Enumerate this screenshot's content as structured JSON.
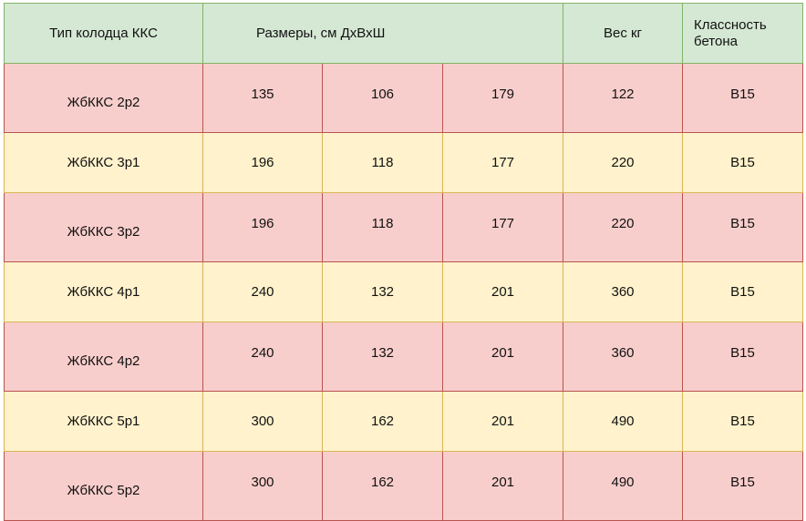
{
  "table": {
    "headers": {
      "type": "Тип колодца ККС",
      "dims": "Размеры, см ДхВхШ",
      "weight": "Вес кг",
      "class": "Классность\nбетона"
    },
    "rows": [
      {
        "name": "ЖбККС 2р2",
        "l": "135",
        "h": "106",
        "w": "179",
        "weight": "122",
        "class": "B15",
        "color": "#f8cecc"
      },
      {
        "name": "ЖбККС 3р1",
        "l": "196",
        "h": "118",
        "w": "177",
        "weight": "220",
        "class": "B15",
        "color": "#fff2cc"
      },
      {
        "name": "ЖбККС 3р2",
        "l": "196",
        "h": "118",
        "w": "177",
        "weight": "220",
        "class": "B15",
        "color": "#f8cecc"
      },
      {
        "name": "ЖбККС 4р1",
        "l": "240",
        "h": "132",
        "w": "201",
        "weight": "360",
        "class": "B15",
        "color": "#fff2cc"
      },
      {
        "name": "ЖбККС 4р2",
        "l": "240",
        "h": "132",
        "w": "201",
        "weight": "360",
        "class": "B15",
        "color": "#f8cecc"
      },
      {
        "name": "ЖбККС 5р1",
        "l": "300",
        "h": "162",
        "w": "201",
        "weight": "490",
        "class": "B15",
        "color": "#fff2cc"
      },
      {
        "name": "ЖбККС 5р2",
        "l": "300",
        "h": "162",
        "w": "201",
        "weight": "490",
        "class": "B15",
        "color": "#f8cecc"
      }
    ]
  },
  "colors": {
    "header_bg": "#d5e8d4",
    "row_red": "#f8cecc",
    "row_yellow": "#fff2cc"
  }
}
